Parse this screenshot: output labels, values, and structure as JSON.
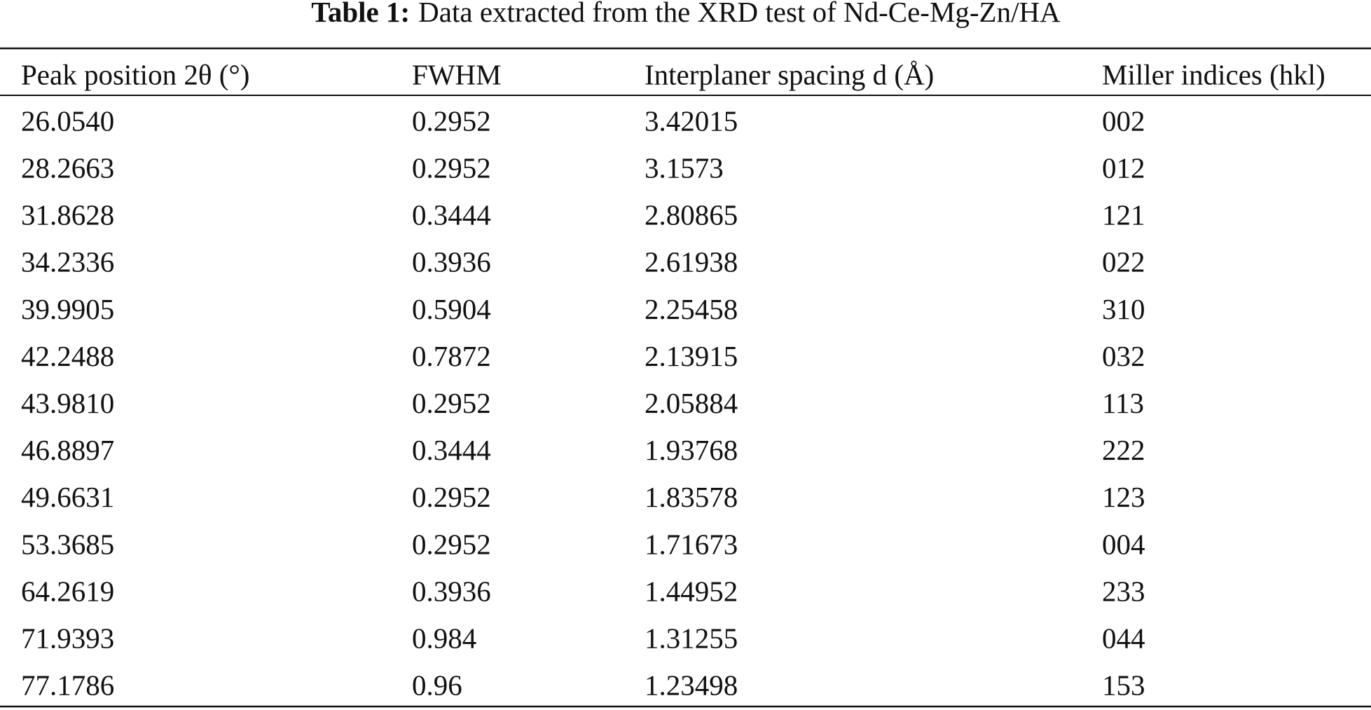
{
  "title": {
    "label": "Table 1:",
    "text": "Data extracted from the XRD test of Nd-Ce-Mg-Zn/HA"
  },
  "table": {
    "headers": [
      "Peak position 2θ (°)",
      "FWHM",
      "Interplaner spacing d (Å)",
      "Miller indices (hkl)"
    ],
    "rows": [
      [
        "26.0540",
        "0.2952",
        "3.42015",
        "002"
      ],
      [
        "28.2663",
        "0.2952",
        "3.1573",
        "012"
      ],
      [
        "31.8628",
        "0.3444",
        "2.80865",
        "121"
      ],
      [
        "34.2336",
        "0.3936",
        "2.61938",
        "022"
      ],
      [
        "39.9905",
        "0.5904",
        "2.25458",
        "310"
      ],
      [
        "42.2488",
        "0.7872",
        "2.13915",
        "032"
      ],
      [
        "43.9810",
        "0.2952",
        "2.05884",
        "113"
      ],
      [
        "46.8897",
        "0.3444",
        "1.93768",
        "222"
      ],
      [
        "49.6631",
        "0.2952",
        "1.83578",
        "123"
      ],
      [
        "53.3685",
        "0.2952",
        "1.71673",
        "004"
      ],
      [
        "64.2619",
        "0.3936",
        "1.44952",
        "233"
      ],
      [
        "71.9393",
        "0.984",
        "1.31255",
        "044"
      ],
      [
        "77.1786",
        "0.96",
        "1.23498",
        "153"
      ]
    ]
  }
}
